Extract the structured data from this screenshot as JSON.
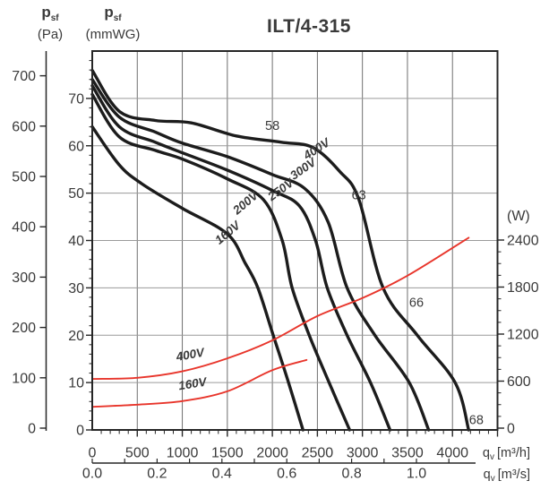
{
  "title": "ILT/4-315",
  "colors": {
    "curve": "#1c1c1c",
    "power": "#e8352b",
    "noise": "#4d80c4",
    "grid_h": "#9a9a9a",
    "grid_v": "#6f6f6f",
    "axis": "#262626",
    "text": "#3a3a3a"
  },
  "axes": {
    "pressure_pa": {
      "symbol": "p",
      "symbol_sub": "sf",
      "unit": "(Pa)",
      "ticks": [
        700,
        600,
        500,
        400,
        300,
        200,
        100,
        0
      ]
    },
    "pressure_mmwg": {
      "symbol": "p",
      "symbol_sub": "sf",
      "unit": "(mmWG)",
      "ticks": [
        70,
        60,
        50,
        40,
        30,
        20,
        10,
        0
      ]
    },
    "power_w": {
      "unit": "(W)",
      "ticks": [
        2400,
        1800,
        1200,
        600,
        0
      ]
    },
    "flow_m3h": {
      "symbol": "q",
      "symbol_sub": "v",
      "unit": "[m³/h]",
      "ticks": [
        0,
        500,
        1000,
        1500,
        2000,
        2500,
        3000,
        3500,
        4000
      ]
    },
    "flow_m3s": {
      "symbol": "q",
      "symbol_sub": "v",
      "unit": "[m³/s]",
      "ticks": [
        "0.0",
        "0.2",
        "0.4",
        "0.6",
        "0.8",
        "1.0"
      ]
    }
  },
  "chart_data": {
    "type": "line",
    "x_axis": {
      "label": "qv [m³/h]",
      "range": [
        0,
        4500
      ],
      "gridline_step": 500,
      "secondary_label": "qv [m³/s]",
      "secondary_range": [
        0,
        1.25
      ]
    },
    "y_left": {
      "label": "psf (Pa) / psf (mmWG)",
      "range_pa": [
        0,
        784
      ],
      "range_mmwg": [
        0,
        80
      ],
      "gridline_step_mmwg": 10
    },
    "y_right": {
      "label": "(W)",
      "range": [
        0,
        2520
      ],
      "tick_step": 600
    },
    "grid": true,
    "series": [
      {
        "name": "fan-400V",
        "kind": "fan",
        "unit": "Pa",
        "color_key": "curve",
        "width": 3.4,
        "label": {
          "text": "400V",
          "q": 2515,
          "v": 575,
          "angle": -33
        },
        "points": [
          [
            0,
            745
          ],
          [
            300,
            660
          ],
          [
            700,
            641
          ],
          [
            1100,
            636
          ],
          [
            1600,
            609
          ],
          [
            2100,
            596
          ],
          [
            2450,
            585
          ],
          [
            2750,
            535
          ],
          [
            2960,
            478
          ],
          [
            3230,
            294
          ],
          [
            3610,
            196
          ],
          [
            4030,
            98
          ],
          [
            4180,
            0
          ]
        ]
      },
      {
        "name": "fan-300V",
        "kind": "fan",
        "unit": "Pa",
        "color_key": "curve",
        "width": 3.4,
        "label": {
          "text": "300V",
          "q": 2366,
          "v": 534,
          "angle": -35
        },
        "points": [
          [
            0,
            726
          ],
          [
            300,
            648
          ],
          [
            700,
            617
          ],
          [
            1000,
            594
          ],
          [
            1500,
            566
          ],
          [
            2000,
            529
          ],
          [
            2360,
            500
          ],
          [
            2620,
            430
          ],
          [
            2830,
            294
          ],
          [
            3140,
            196
          ],
          [
            3520,
            98
          ],
          [
            3735,
            0
          ]
        ]
      },
      {
        "name": "fan-250V",
        "kind": "fan",
        "unit": "Pa",
        "color_key": "curve",
        "width": 3.4,
        "label": {
          "text": "250V",
          "q": 2118,
          "v": 491,
          "angle": -36
        },
        "points": [
          [
            0,
            713
          ],
          [
            300,
            628
          ],
          [
            700,
            596
          ],
          [
            1000,
            574
          ],
          [
            1500,
            538
          ],
          [
            2000,
            496
          ],
          [
            2300,
            464
          ],
          [
            2480,
            392
          ],
          [
            2610,
            294
          ],
          [
            2830,
            196
          ],
          [
            3090,
            98
          ],
          [
            3307,
            0
          ]
        ]
      },
      {
        "name": "fan-200V",
        "kind": "fan",
        "unit": "Pa",
        "color_key": "curve",
        "width": 3.4,
        "label": {
          "text": "200V",
          "q": 1730,
          "v": 464,
          "angle": -40
        },
        "points": [
          [
            0,
            695
          ],
          [
            300,
            607
          ],
          [
            700,
            579
          ],
          [
            1000,
            561
          ],
          [
            1500,
            520
          ],
          [
            1900,
            477
          ],
          [
            2110,
            392
          ],
          [
            2220,
            294
          ],
          [
            2410,
            196
          ],
          [
            2630,
            98
          ],
          [
            2858,
            0
          ]
        ]
      },
      {
        "name": "fan-160V",
        "kind": "fan",
        "unit": "Pa",
        "color_key": "curve",
        "width": 3.4,
        "label": {
          "text": "160V",
          "q": 1531,
          "v": 402,
          "angle": -40
        },
        "points": [
          [
            0,
            628
          ],
          [
            300,
            549
          ],
          [
            550,
            510
          ],
          [
            1000,
            459
          ],
          [
            1500,
            406
          ],
          [
            1700,
            345
          ],
          [
            1840,
            294
          ],
          [
            2010,
            196
          ],
          [
            2180,
            98
          ],
          [
            2340,
            0
          ]
        ]
      },
      {
        "name": "power-400V",
        "kind": "power",
        "unit": "W",
        "color_key": "power",
        "width": 1.9,
        "label": {
          "text": "400V",
          "q": 1095,
          "v": 888,
          "angle": -10
        },
        "points": [
          [
            0,
            628
          ],
          [
            500,
            642
          ],
          [
            1000,
            725
          ],
          [
            1500,
            890
          ],
          [
            2000,
            1120
          ],
          [
            2500,
            1430
          ],
          [
            3000,
            1660
          ],
          [
            3500,
            1945
          ],
          [
            4180,
            2430
          ]
        ]
      },
      {
        "name": "power-160V",
        "kind": "power",
        "unit": "W",
        "color_key": "power",
        "width": 1.9,
        "label": {
          "text": "160V",
          "q": 1120,
          "v": 516,
          "angle": -9
        },
        "points": [
          [
            0,
            272
          ],
          [
            500,
            300
          ],
          [
            1000,
            345
          ],
          [
            1500,
            470
          ],
          [
            2000,
            740
          ],
          [
            2380,
            870
          ]
        ]
      }
    ],
    "noise_levels_db": [
      {
        "text": "58",
        "q": 2000,
        "pa": 630
      },
      {
        "text": "63",
        "q": 2960,
        "pa": 486
      },
      {
        "text": "66",
        "q": 3600,
        "pa": 263
      },
      {
        "text": "68",
        "q": 4265,
        "pa": 20
      }
    ]
  }
}
